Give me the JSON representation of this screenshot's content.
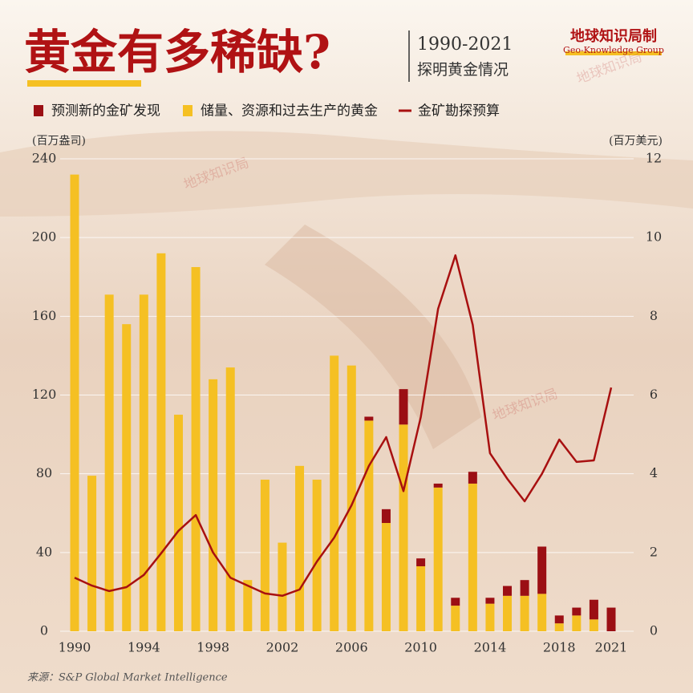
{
  "chart_data": {
    "type": "bar",
    "stacked": true,
    "title": "黄金有多稀缺?",
    "subtitle": "1990-2021",
    "subtitle2": "探明黄金情况",
    "brand": "地球知识局制",
    "brand_en": "Geo-Knowledge Group",
    "watermark": "地球知识局",
    "y_label": "(百万盎司)",
    "y2_label": "(百万美元)",
    "source": "来源：S&P Global Market Intelligence",
    "categories": [
      "1990",
      null,
      null,
      null,
      "1994",
      null,
      null,
      null,
      "1998",
      null,
      null,
      null,
      "2002",
      null,
      null,
      null,
      "2006",
      null,
      null,
      null,
      "2010",
      null,
      null,
      null,
      "2014",
      null,
      null,
      null,
      "2018",
      null,
      null,
      "2021"
    ],
    "series": [
      {
        "name": "预测新的金矿发现",
        "color": "#9b0f14",
        "type": "bar",
        "values": [
          0,
          0,
          0,
          0,
          0,
          0,
          0,
          0,
          0,
          0,
          0,
          0,
          0,
          0,
          0,
          0,
          0,
          2,
          7,
          18,
          4,
          2,
          4,
          6,
          3,
          5,
          8,
          24,
          4,
          4,
          10,
          12
        ]
      },
      {
        "name": "储量、资源和过去生产的黄金",
        "color": "#f5c023",
        "type": "bar",
        "values": [
          232,
          79,
          171,
          156,
          171,
          192,
          110,
          185,
          128,
          134,
          26,
          77,
          45,
          84,
          77,
          140,
          135,
          107,
          55,
          105,
          33,
          73,
          13,
          75,
          14,
          18,
          18,
          19,
          4,
          8,
          6,
          0
        ]
      },
      {
        "name": "金矿勘探预算",
        "color": "#a81010",
        "type": "line",
        "axis": "y2",
        "values": [
          1.36,
          1.16,
          1.02,
          1.12,
          1.43,
          1.98,
          2.55,
          2.95,
          2.0,
          1.36,
          1.16,
          0.96,
          0.9,
          1.06,
          1.77,
          2.38,
          3.2,
          4.2,
          4.93,
          3.56,
          5.44,
          8.19,
          9.55,
          7.78,
          4.52,
          3.87,
          3.3,
          4.0,
          4.87,
          4.3,
          4.34,
          6.19
        ]
      }
    ],
    "ylim": [
      0,
      240
    ],
    "yticks": [
      0,
      40,
      80,
      120,
      160,
      200,
      240
    ],
    "y2lim": [
      0,
      12
    ],
    "y2ticks": [
      0,
      2,
      4,
      6,
      8,
      10,
      12
    ],
    "grid": true
  }
}
